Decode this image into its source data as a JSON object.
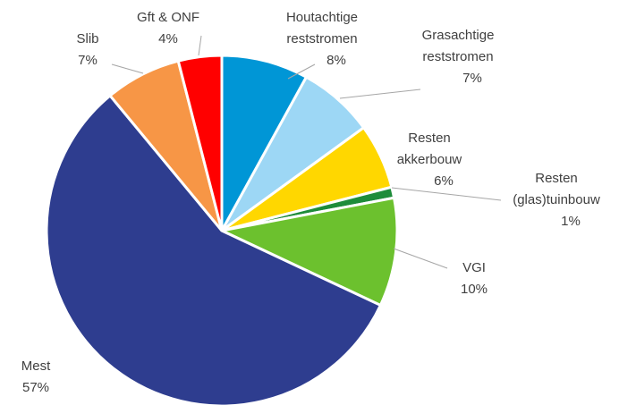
{
  "chart_data": {
    "type": "pie",
    "categories": [
      [
        "Houtachtige",
        "reststromen"
      ],
      [
        "Grasachtige",
        "reststromen"
      ],
      [
        "Resten",
        "akkerbouw"
      ],
      [
        "Resten",
        "(glas)tuinbouw"
      ],
      [
        "VGI"
      ],
      [
        "Mest"
      ],
      [
        "Slib"
      ],
      [
        "Gft & ONF"
      ]
    ],
    "values": [
      8,
      7,
      6,
      1,
      10,
      57,
      7,
      4
    ],
    "value_labels": [
      "8%",
      "7%",
      "6%",
      "1%",
      "10%",
      "57%",
      "7%",
      "4%"
    ],
    "colors": [
      "#0096d6",
      "#9dd7f5",
      "#ffd700",
      "#1e8c3a",
      "#6cc12e",
      "#2e3d8f",
      "#f79646",
      "#ff0000"
    ]
  }
}
